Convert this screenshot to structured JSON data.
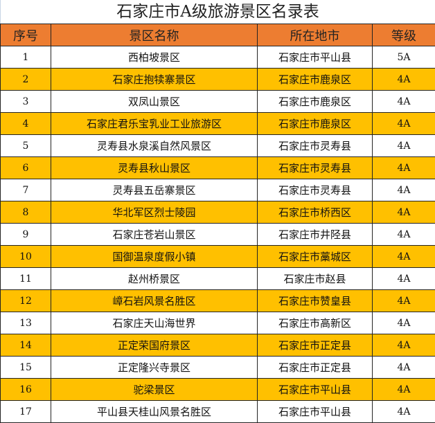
{
  "title": "石家庄市A级旅游景区名录表",
  "colors": {
    "header": "#ED7D31",
    "alt_row": "#FFC000",
    "row": "#FFFFFF"
  },
  "headers": [
    "序号",
    "景区名称",
    "所在地市",
    "等级"
  ],
  "rows": [
    [
      "1",
      "西柏坡景区",
      "石家庄市平山县",
      "5A"
    ],
    [
      "2",
      "石家庄抱犊寨景区",
      "石家庄市鹿泉区",
      "4A"
    ],
    [
      "3",
      "双凤山景区",
      "石家庄市鹿泉区",
      "4A"
    ],
    [
      "4",
      "石家庄君乐宝乳业工业旅游区",
      "石家庄市鹿泉区",
      "4A"
    ],
    [
      "5",
      "灵寿县水泉溪自然风景区",
      "石家庄市灵寿县",
      "4A"
    ],
    [
      "6",
      "灵寿县秋山景区",
      "石家庄市灵寿县",
      "4A"
    ],
    [
      "7",
      "灵寿县五岳寨景区",
      "石家庄市灵寿县",
      "4A"
    ],
    [
      "8",
      "华北军区烈士陵园",
      "石家庄市桥西区",
      "4A"
    ],
    [
      "9",
      "石家庄苍岩山景区",
      "石家庄市井陉县",
      "4A"
    ],
    [
      "10",
      "国御温泉度假小镇",
      "石家庄市藁城区",
      "4A"
    ],
    [
      "11",
      "赵州桥景区",
      "石家庄市赵县",
      "4A"
    ],
    [
      "12",
      "嶂石岩风景名胜区",
      "石家庄市赞皇县",
      "4A"
    ],
    [
      "13",
      "石家庄天山海世界",
      "石家庄市高新区",
      "4A"
    ],
    [
      "14",
      "正定荣国府景区",
      "石家庄市正定县",
      "4A"
    ],
    [
      "15",
      "正定隆兴寺景区",
      "石家庄市正定县",
      "4A"
    ],
    [
      "16",
      "驼梁景区",
      "石家庄市平山县",
      "4A"
    ],
    [
      "17",
      "平山县天桂山风景名胜区",
      "石家庄市平山县",
      "4A"
    ]
  ]
}
